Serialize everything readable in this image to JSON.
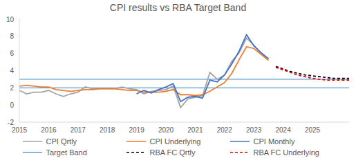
{
  "chart_data": {
    "type": "line",
    "title": "CPI results vs RBA Target Band",
    "x": [
      2015,
      2015.25,
      2015.5,
      2015.75,
      2016,
      2016.25,
      2016.5,
      2016.75,
      2017,
      2017.25,
      2017.5,
      2017.75,
      2018,
      2018.25,
      2018.5,
      2018.75,
      2019,
      2019.25,
      2019.5,
      2019.75,
      2020,
      2020.25,
      2020.5,
      2020.75,
      2021,
      2021.25,
      2021.5,
      2021.75,
      2022,
      2022.25,
      2022.5,
      2022.75,
      2023,
      2023.25,
      2023.5,
      2023.75,
      2024,
      2024.25,
      2024.5,
      2024.75,
      2025,
      2025.25,
      2025.5,
      2025.75,
      2026,
      2026.25
    ],
    "series": [
      {
        "name": "CPI Qrtly",
        "color": "#a5a5a5",
        "line_style": "solid",
        "values": [
          1.7,
          1.3,
          1.5,
          1.5,
          1.7,
          1.3,
          1.0,
          1.3,
          1.5,
          2.1,
          1.9,
          1.9,
          1.9,
          1.9,
          2.1,
          1.9,
          1.8,
          1.3,
          1.6,
          1.7,
          1.8,
          2.2,
          -0.3,
          0.7,
          0.9,
          1.1,
          3.8,
          3.0,
          3.5,
          5.1,
          6.1,
          7.8,
          7.0,
          6.0,
          5.4,
          null,
          null,
          null,
          null,
          null,
          null,
          null,
          null,
          null,
          null,
          null
        ]
      },
      {
        "name": "CPI Underlying",
        "color": "#ed7d31",
        "line_style": "solid",
        "values": [
          2.2,
          2.3,
          2.2,
          2.1,
          2.1,
          1.8,
          1.7,
          1.6,
          1.7,
          1.8,
          1.8,
          1.9,
          1.9,
          1.9,
          1.8,
          1.7,
          1.7,
          1.5,
          1.5,
          1.5,
          1.6,
          1.8,
          1.2,
          1.2,
          1.1,
          1.2,
          1.6,
          2.1,
          2.6,
          3.7,
          5.3,
          6.8,
          6.6,
          5.9,
          5.2,
          null,
          null,
          null,
          null,
          null,
          null,
          null,
          null,
          null,
          null,
          null
        ]
      },
      {
        "name": "CPI Monthly",
        "color": "#4472c4",
        "line_style": "solid",
        "values": [
          null,
          null,
          null,
          null,
          null,
          null,
          null,
          null,
          null,
          null,
          null,
          null,
          null,
          null,
          null,
          null,
          1.3,
          1.7,
          1.4,
          1.8,
          2.1,
          2.5,
          0.4,
          0.9,
          1.0,
          0.8,
          2.9,
          2.7,
          3.5,
          4.8,
          6.3,
          8.2,
          6.9,
          6.1,
          5.4,
          null,
          null,
          null,
          null,
          null,
          null,
          null,
          null,
          null,
          null,
          null
        ]
      },
      {
        "name": "RBA FC Qrtly",
        "color": "#000000",
        "line_style": "dashed",
        "values": [
          null,
          null,
          null,
          null,
          null,
          null,
          null,
          null,
          null,
          null,
          null,
          null,
          null,
          null,
          null,
          null,
          null,
          null,
          null,
          null,
          null,
          null,
          null,
          null,
          null,
          null,
          null,
          null,
          null,
          null,
          null,
          null,
          null,
          null,
          null,
          4.5,
          4.2,
          3.9,
          3.7,
          3.5,
          3.4,
          3.3,
          3.2,
          3.1,
          3.1,
          3.1
        ]
      },
      {
        "name": "RBA FC Underlying",
        "color": "#e00000",
        "line_style": "dashed",
        "values": [
          null,
          null,
          null,
          null,
          null,
          null,
          null,
          null,
          null,
          null,
          null,
          null,
          null,
          null,
          null,
          null,
          null,
          null,
          null,
          null,
          null,
          null,
          null,
          null,
          null,
          null,
          null,
          null,
          null,
          null,
          null,
          null,
          null,
          null,
          null,
          4.4,
          4.1,
          3.8,
          3.5,
          3.3,
          3.1,
          3.0,
          2.9,
          2.9,
          2.9,
          2.9
        ]
      }
    ],
    "target_band": {
      "name": "Target Band",
      "color": "#5b9bd5",
      "values": [
        2,
        3
      ]
    },
    "xlim": [
      2015,
      2026.25
    ],
    "xticks": [
      2015,
      2016,
      2017,
      2018,
      2019,
      2020,
      2021,
      2022,
      2023,
      2024,
      2025
    ],
    "ylim": [
      -2,
      10
    ],
    "yticks": [
      -2,
      0,
      2,
      4,
      6,
      8,
      10
    ],
    "grid": false,
    "legend": "bottom"
  }
}
